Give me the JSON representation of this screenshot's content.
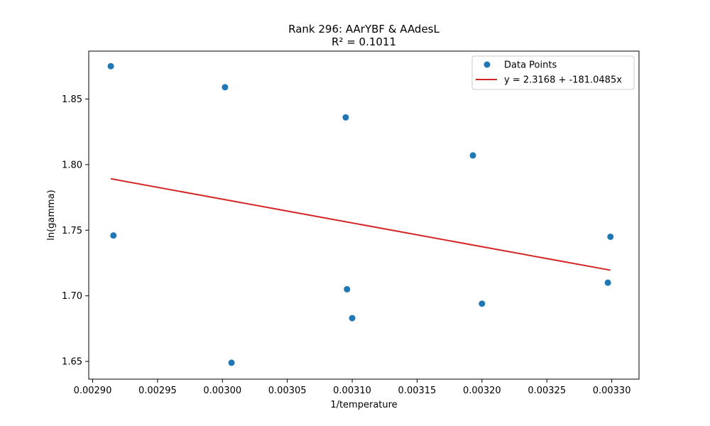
{
  "chart_data": {
    "type": "scatter",
    "title": "Rank 296: AArYBF & AAdesL",
    "subtitle": "R² = 0.1011",
    "xlabel": "1/temperature",
    "ylabel": "ln(gamma)",
    "xlim": [
      0.002897,
      0.003321
    ],
    "ylim": [
      1.6365,
      1.8865
    ],
    "x_ticks": [
      {
        "value": 0.0029,
        "label": "0.00290"
      },
      {
        "value": 0.00295,
        "label": "0.00295"
      },
      {
        "value": 0.003,
        "label": "0.00300"
      },
      {
        "value": 0.00305,
        "label": "0.00305"
      },
      {
        "value": 0.0031,
        "label": "0.00310"
      },
      {
        "value": 0.00315,
        "label": "0.00315"
      },
      {
        "value": 0.0032,
        "label": "0.00320"
      },
      {
        "value": 0.00325,
        "label": "0.00325"
      },
      {
        "value": 0.0033,
        "label": "0.00330"
      }
    ],
    "y_ticks": [
      {
        "value": 1.65,
        "label": "1.65"
      },
      {
        "value": 1.7,
        "label": "1.70"
      },
      {
        "value": 1.75,
        "label": "1.75"
      },
      {
        "value": 1.8,
        "label": "1.80"
      },
      {
        "value": 1.85,
        "label": "1.85"
      }
    ],
    "grid": false,
    "legend_position": "top-right",
    "series": [
      {
        "name": "Data Points",
        "kind": "scatter",
        "color": "#1f77b4",
        "x": [
          0.002914,
          0.002916,
          0.003002,
          0.003007,
          0.003095,
          0.003096,
          0.0031,
          0.003193,
          0.0032,
          0.003297,
          0.003299
        ],
        "y": [
          1.875,
          1.746,
          1.859,
          1.649,
          1.836,
          1.705,
          1.683,
          1.807,
          1.694,
          1.71,
          1.745
        ]
      },
      {
        "name": "y = 2.3168 + -181.0485x",
        "kind": "line",
        "color": "#d62728",
        "intercept": 2.3168,
        "slope": -181.0485,
        "x_range": [
          0.002914,
          0.003299
        ]
      }
    ]
  }
}
